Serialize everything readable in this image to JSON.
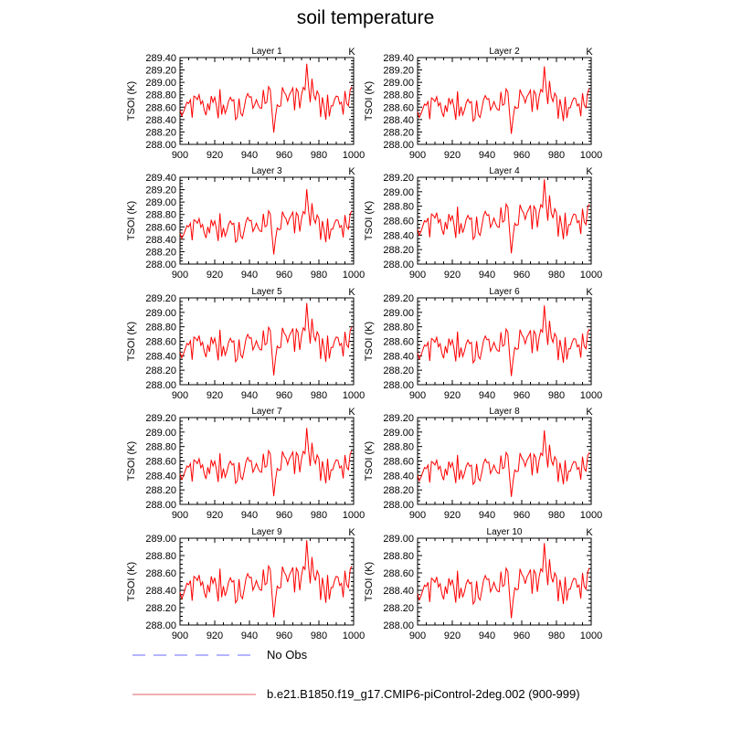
{
  "chart_data": {
    "type": "line",
    "title": "soil temperature",
    "ylabel": "TSOI  (K)",
    "units_label": "K",
    "xlim": [
      900,
      1000
    ],
    "xticks": [
      900,
      920,
      940,
      960,
      980,
      1000
    ],
    "x_start": 900,
    "series_color": "#ff0000",
    "base_series_layer1": [
      288.55,
      288.46,
      288.52,
      288.6,
      288.68,
      288.66,
      288.72,
      288.43,
      288.78,
      288.76,
      288.72,
      288.8,
      288.65,
      288.7,
      288.55,
      288.47,
      288.66,
      288.55,
      288.78,
      288.68,
      288.76,
      288.62,
      288.42,
      288.89,
      288.48,
      288.64,
      288.5,
      288.58,
      288.7,
      288.76,
      288.7,
      288.72,
      288.4,
      288.44,
      288.74,
      288.5,
      288.46,
      288.6,
      288.75,
      288.82,
      288.76,
      288.77,
      288.58,
      288.64,
      288.72,
      288.64,
      288.59,
      288.58,
      288.88,
      288.66,
      288.68,
      288.93,
      288.88,
      288.52,
      288.19,
      288.45,
      288.64,
      288.61,
      288.62,
      288.92,
      288.84,
      288.8,
      288.7,
      288.8,
      288.85,
      288.91,
      288.55,
      288.9,
      288.85,
      288.58,
      288.8,
      288.92,
      288.88,
      289.3,
      288.95,
      288.68,
      289.06,
      288.8,
      288.72,
      288.86,
      288.8,
      288.44,
      288.76,
      288.6,
      288.4,
      288.8,
      288.45,
      288.62,
      288.62,
      288.72,
      288.78,
      288.77,
      288.65,
      288.68,
      288.48,
      288.86,
      288.66,
      288.62,
      288.88,
      288.93
    ],
    "base_mean": 288.68,
    "panels": [
      {
        "title": "Layer 1",
        "mean": 288.68,
        "scale": 1.0,
        "ylim": [
          288.0,
          289.4
        ],
        "yticks": [
          "288.00",
          "288.20",
          "288.40",
          "288.60",
          "288.80",
          "289.00",
          "289.20",
          "289.40"
        ]
      },
      {
        "title": "Layer 2",
        "mean": 288.65,
        "scale": 0.98,
        "ylim": [
          288.0,
          289.4
        ],
        "yticks": [
          "288.00",
          "288.20",
          "288.40",
          "288.60",
          "288.80",
          "289.00",
          "289.20",
          "289.40"
        ]
      },
      {
        "title": "Layer 3",
        "mean": 288.62,
        "scale": 0.95,
        "ylim": [
          288.0,
          289.4
        ],
        "yticks": [
          "288.00",
          "288.20",
          "288.40",
          "288.60",
          "288.80",
          "289.00",
          "289.20",
          "289.40"
        ]
      },
      {
        "title": "Layer 4",
        "mean": 288.6,
        "scale": 0.92,
        "ylim": [
          288.0,
          289.2
        ],
        "yticks": [
          "288.00",
          "288.20",
          "288.40",
          "288.60",
          "288.80",
          "289.00",
          "289.20"
        ]
      },
      {
        "title": "Layer 5",
        "mean": 288.57,
        "scale": 0.9,
        "ylim": [
          288.0,
          289.2
        ],
        "yticks": [
          "288.00",
          "288.20",
          "288.40",
          "288.60",
          "288.80",
          "289.00",
          "289.20"
        ]
      },
      {
        "title": "Layer 6",
        "mean": 288.55,
        "scale": 0.88,
        "ylim": [
          288.0,
          289.2
        ],
        "yticks": [
          "288.00",
          "288.20",
          "288.40",
          "288.60",
          "288.80",
          "289.00",
          "289.20"
        ]
      },
      {
        "title": "Layer 7",
        "mean": 288.53,
        "scale": 0.85,
        "ylim": [
          288.0,
          289.2
        ],
        "yticks": [
          "288.00",
          "288.20",
          "288.40",
          "288.60",
          "288.80",
          "289.00",
          "289.20"
        ]
      },
      {
        "title": "Layer 8",
        "mean": 288.51,
        "scale": 0.83,
        "ylim": [
          288.0,
          289.2
        ],
        "yticks": [
          "288.00",
          "288.20",
          "288.40",
          "288.60",
          "288.80",
          "289.00",
          "289.20"
        ]
      },
      {
        "title": "Layer 9",
        "mean": 288.48,
        "scale": 0.8,
        "ylim": [
          288.0,
          289.0
        ],
        "yticks": [
          "288.00",
          "288.20",
          "288.40",
          "288.60",
          "288.80",
          "289.00"
        ]
      },
      {
        "title": "Layer 10",
        "mean": 288.46,
        "scale": 0.78,
        "ylim": [
          288.0,
          289.0
        ],
        "yticks": [
          "288.00",
          "288.20",
          "288.40",
          "288.60",
          "288.80",
          "289.00"
        ]
      }
    ],
    "legend": [
      {
        "label": "No Obs",
        "color": "#6a6aff",
        "style": "dashed"
      },
      {
        "label": "b.e21.B1850.f19_g17.CMIP6-piControl-2deg.002 (900-999)",
        "color": "#e06060",
        "style": "solid"
      }
    ]
  }
}
